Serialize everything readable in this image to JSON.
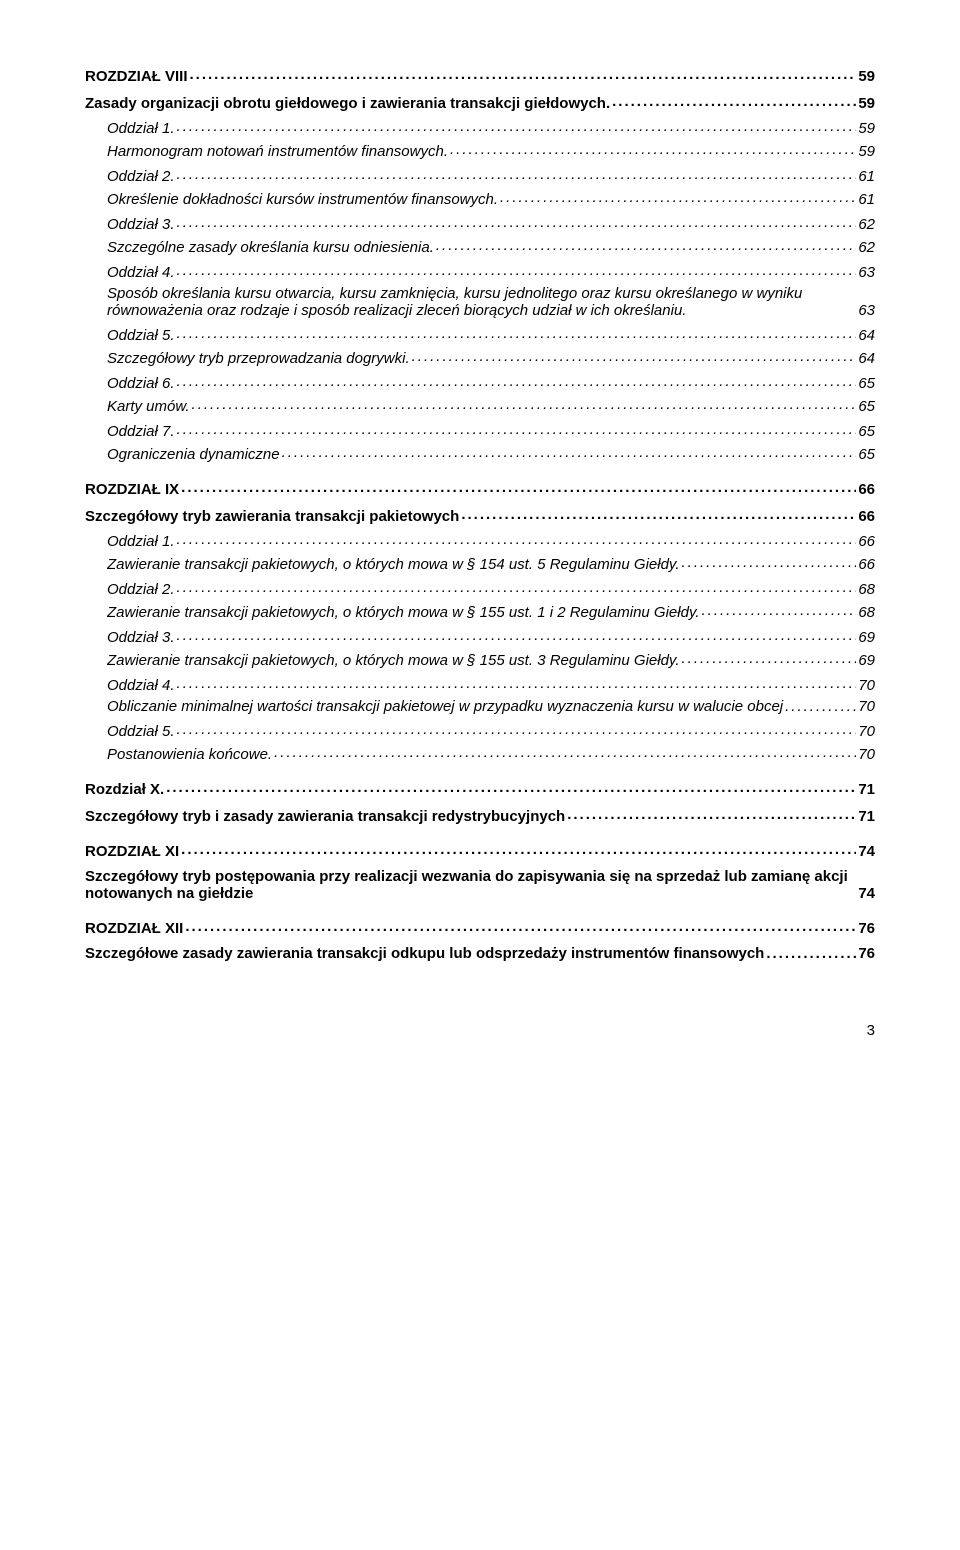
{
  "toc": [
    {
      "level": 0,
      "label": "ROZDZIAŁ VIII",
      "page": "59"
    },
    {
      "level": 1,
      "label": "Zasady organizacji obrotu giełdowego i zawierania transakcji giełdowych.",
      "page": "59"
    },
    {
      "level": 2,
      "label": "Oddział 1.",
      "page": "59"
    },
    {
      "level": 3,
      "label": "Harmonogram notowań instrumentów finansowych.",
      "page": "59"
    },
    {
      "level": 2,
      "label": "Oddział 2.",
      "page": "61"
    },
    {
      "level": 3,
      "label": "Określenie dokładności kursów   instrumentów finansowych.",
      "page": "61"
    },
    {
      "level": 2,
      "label": "Oddział 3.",
      "page": "62"
    },
    {
      "level": 3,
      "label": "Szczególne zasady określania kursu odniesienia.",
      "page": "62"
    },
    {
      "level": 2,
      "label": "Oddział 4.",
      "page": "63"
    },
    {
      "level": 3,
      "wrap": true,
      "label": "Sposób określania kursu otwarcia, kursu zamknięcia, kursu jednolitego oraz kursu określanego w wyniku równoważenia oraz rodzaje i sposób realizacji zleceń biorących udział w ich określaniu.",
      "page": "63"
    },
    {
      "level": 2,
      "label": "Oddział 5.",
      "page": "64"
    },
    {
      "level": 3,
      "label": "Szczegółowy tryb  przeprowadzania dogrywki.",
      "page": "64"
    },
    {
      "level": 2,
      "label": "Oddział 6.",
      "page": "65"
    },
    {
      "level": 3,
      "label": "Karty umów.",
      "page": "65"
    },
    {
      "level": 2,
      "label": "Oddział 7.",
      "page": "65"
    },
    {
      "level": 3,
      "label": "Ograniczenia dynamiczne",
      "page": "65"
    },
    {
      "level": 0,
      "label": "ROZDZIAŁ IX",
      "page": "66"
    },
    {
      "level": 1,
      "label": "Szczegółowy tryb zawierania transakcji pakietowych",
      "page": "66"
    },
    {
      "level": 2,
      "label": "Oddział  1.",
      "page": "66"
    },
    {
      "level": 3,
      "label": "Zawieranie transakcji pakietowych, o których mowa w  § 154 ust. 5 Regulaminu Giełdy.",
      "page": "66"
    },
    {
      "level": 2,
      "label": "Oddział 2.",
      "page": "68"
    },
    {
      "level": 3,
      "label": "Zawieranie transakcji pakietowych, o których mowa w  § 155 ust. 1 i 2 Regulaminu Giełdy.",
      "page": "68"
    },
    {
      "level": 2,
      "label": "Oddział 3.",
      "page": "69"
    },
    {
      "level": 3,
      "label": "Zawieranie transakcji pakietowych, o których mowa w § 155 ust. 3 Regulaminu Giełdy.",
      "page": "69"
    },
    {
      "level": 2,
      "label": "Oddział 4.",
      "page": "70"
    },
    {
      "level": 3,
      "wrap": true,
      "label": "Obliczanie minimalnej wartości transakcji pakietowej w przypadku wyznaczenia kursu w walucie obcej",
      "page": "70"
    },
    {
      "level": 2,
      "label": "Oddział 5.",
      "page": "70"
    },
    {
      "level": 3,
      "label": "Postanowienia końcowe.",
      "page": "70"
    },
    {
      "level": 0,
      "label": "Rozdział X.",
      "page": "71"
    },
    {
      "level": 1,
      "label": "Szczegółowy tryb i zasady zawierania transakcji redystrybucyjnych",
      "page": "71"
    },
    {
      "level": 0,
      "label": "ROZDZIAŁ XI",
      "page": "74"
    },
    {
      "level": 1,
      "wrap": true,
      "bold": true,
      "label": "Szczegółowy tryb postępowania przy realizacji wezwania do zapisywania się na sprzedaż lub zamianę akcji notowanych na giełdzie",
      "page": "74"
    },
    {
      "level": 0,
      "label": "ROZDZIAŁ XII",
      "page": "76"
    },
    {
      "level": 1,
      "wrap": true,
      "bold": true,
      "label": "Szczegółowe zasady zawierania transakcji odkupu lub odsprzedaży instrumentów finansowych",
      "page": "76"
    }
  ],
  "footer_page": "3"
}
